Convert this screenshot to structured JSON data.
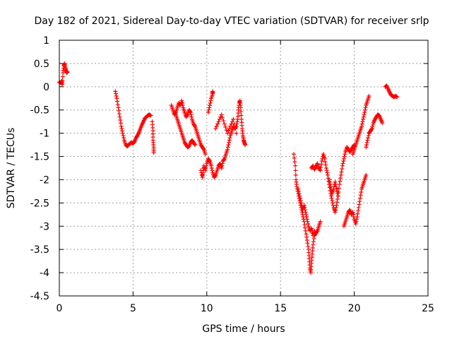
{
  "chart_data": {
    "type": "scatter",
    "title": "Day 182 of 2021, Sidereal Day-to-day VTEC variation (SDTVAR) for receiver srlp",
    "xlabel": "GPS time / hours",
    "ylabel": "SDTVAR / TECUs",
    "xlim": [
      0,
      25
    ],
    "ylim": [
      -4.5,
      1
    ],
    "xticks": [
      "0",
      "5",
      "10",
      "15",
      "20",
      "25"
    ],
    "yticks": [
      "1",
      "0.5",
      "0",
      "-0.5",
      "-1",
      "-1.5",
      "-2",
      "-2.5",
      "-3",
      "-3.5",
      "-4",
      "-4.5"
    ],
    "grid": true,
    "marker": "plus",
    "color": "#ff0000",
    "segments": [
      [
        [
          0.0,
          0.1
        ],
        [
          0.1,
          0.08
        ],
        [
          0.15,
          0.12
        ],
        [
          0.2,
          0.05
        ],
        [
          0.25,
          0.3
        ],
        [
          0.3,
          0.45
        ],
        [
          0.35,
          0.5
        ],
        [
          0.4,
          0.42
        ],
        [
          0.45,
          0.35
        ],
        [
          0.5,
          0.3
        ],
        [
          0.55,
          0.32
        ]
      ],
      [
        [
          3.8,
          -0.1
        ],
        [
          3.9,
          -0.25
        ],
        [
          4.0,
          -0.45
        ],
        [
          4.1,
          -0.65
        ],
        [
          4.2,
          -0.85
        ],
        [
          4.3,
          -1.0
        ],
        [
          4.4,
          -1.15
        ],
        [
          4.5,
          -1.25
        ],
        [
          4.6,
          -1.28
        ],
        [
          4.7,
          -1.25
        ],
        [
          4.8,
          -1.22
        ],
        [
          4.9,
          -1.2
        ],
        [
          5.0,
          -1.22
        ],
        [
          5.1,
          -1.18
        ],
        [
          5.2,
          -1.1
        ],
        [
          5.3,
          -1.05
        ],
        [
          5.4,
          -0.98
        ],
        [
          5.5,
          -0.9
        ],
        [
          5.6,
          -0.82
        ],
        [
          5.7,
          -0.75
        ],
        [
          5.8,
          -0.68
        ],
        [
          5.9,
          -0.65
        ],
        [
          6.0,
          -0.62
        ],
        [
          6.1,
          -0.6
        ],
        [
          6.2,
          -0.62
        ]
      ],
      [
        [
          6.3,
          -0.75
        ],
        [
          6.35,
          -0.95
        ],
        [
          6.35,
          -1.15
        ],
        [
          6.4,
          -1.3
        ],
        [
          6.4,
          -1.42
        ]
      ],
      [
        [
          7.6,
          -0.4
        ],
        [
          7.7,
          -0.5
        ],
        [
          7.8,
          -0.6
        ],
        [
          7.9,
          -0.55
        ],
        [
          8.0,
          -0.45
        ],
        [
          8.1,
          -0.35
        ],
        [
          8.2,
          -0.4
        ],
        [
          8.3,
          -0.3
        ],
        [
          8.4,
          -0.45
        ],
        [
          8.5,
          -0.55
        ],
        [
          8.6,
          -0.65
        ],
        [
          8.7,
          -0.6
        ],
        [
          8.8,
          -0.5
        ],
        [
          8.9,
          -0.55
        ],
        [
          9.0,
          -0.7
        ],
        [
          9.1,
          -0.8
        ],
        [
          9.2,
          -0.85
        ],
        [
          9.3,
          -0.95
        ],
        [
          9.4,
          -1.05
        ],
        [
          9.5,
          -1.15
        ],
        [
          9.6,
          -1.25
        ],
        [
          9.7,
          -1.3
        ],
        [
          9.8,
          -1.35
        ],
        [
          9.9,
          -1.45
        ]
      ],
      [
        [
          7.9,
          -0.6
        ],
        [
          8.0,
          -0.7
        ],
        [
          8.1,
          -0.8
        ],
        [
          8.2,
          -0.9
        ],
        [
          8.3,
          -1.0
        ],
        [
          8.4,
          -1.1
        ],
        [
          8.5,
          -1.2
        ],
        [
          8.6,
          -1.25
        ],
        [
          8.7,
          -1.3
        ],
        [
          8.8,
          -1.28
        ],
        [
          8.9,
          -1.2
        ],
        [
          9.0,
          -1.15
        ],
        [
          9.1,
          -1.2
        ],
        [
          9.2,
          -1.25
        ]
      ],
      [
        [
          9.6,
          -1.8
        ],
        [
          9.7,
          -1.95
        ],
        [
          9.75,
          -1.85
        ],
        [
          9.8,
          -1.7
        ],
        [
          9.9,
          -1.8
        ],
        [
          10.0,
          -1.65
        ],
        [
          10.1,
          -1.55
        ],
        [
          10.2,
          -1.6
        ],
        [
          10.3,
          -1.7
        ],
        [
          10.4,
          -1.85
        ],
        [
          10.5,
          -1.95
        ],
        [
          10.6,
          -1.9
        ],
        [
          10.7,
          -1.8
        ],
        [
          10.8,
          -1.7
        ],
        [
          10.9,
          -1.65
        ],
        [
          11.0,
          -1.75
        ],
        [
          11.1,
          -1.6
        ],
        [
          11.2,
          -1.55
        ],
        [
          11.3,
          -1.45
        ],
        [
          11.4,
          -1.35
        ],
        [
          11.5,
          -1.2
        ],
        [
          11.6,
          -1.05
        ],
        [
          11.7,
          -0.95
        ],
        [
          11.8,
          -0.85
        ],
        [
          11.9,
          -0.9
        ],
        [
          12.0,
          -0.85
        ],
        [
          12.1,
          -0.7
        ],
        [
          12.15,
          -0.5
        ],
        [
          12.2,
          -0.35
        ],
        [
          12.25,
          -0.3
        ],
        [
          12.3,
          -0.45
        ],
        [
          12.35,
          -0.7
        ],
        [
          12.4,
          -0.9
        ],
        [
          12.45,
          -1.05
        ],
        [
          12.5,
          -1.15
        ],
        [
          12.55,
          -1.2
        ],
        [
          12.6,
          -1.25
        ]
      ],
      [
        [
          10.1,
          -0.55
        ],
        [
          10.2,
          -0.4
        ],
        [
          10.3,
          -0.25
        ],
        [
          10.4,
          -0.15
        ],
        [
          10.4,
          -0.1
        ]
      ],
      [
        [
          10.6,
          -0.9
        ],
        [
          10.8,
          -0.75
        ],
        [
          11.0,
          -0.6
        ],
        [
          11.2,
          -0.8
        ],
        [
          11.4,
          -1.0
        ],
        [
          11.6,
          -0.85
        ],
        [
          11.8,
          -0.7
        ],
        [
          12.0,
          -1.0
        ]
      ],
      [
        [
          15.9,
          -1.45
        ],
        [
          16.0,
          -1.7
        ],
        [
          16.05,
          -2.0
        ],
        [
          16.1,
          -2.15
        ],
        [
          16.2,
          -2.3
        ],
        [
          16.3,
          -2.45
        ],
        [
          16.4,
          -2.6
        ],
        [
          16.5,
          -2.75
        ],
        [
          16.6,
          -2.9
        ],
        [
          16.7,
          -3.1
        ],
        [
          16.8,
          -3.3
        ],
        [
          16.9,
          -3.5
        ],
        [
          16.95,
          -3.7
        ],
        [
          17.0,
          -3.9
        ],
        [
          17.05,
          -4.0
        ],
        [
          17.1,
          -3.8
        ],
        [
          17.15,
          -3.6
        ],
        [
          17.2,
          -3.4
        ],
        [
          17.3,
          -3.2
        ],
        [
          17.4,
          -3.15
        ],
        [
          17.5,
          -3.1
        ],
        [
          17.6,
          -3.0
        ],
        [
          17.7,
          -2.9
        ]
      ],
      [
        [
          16.2,
          -2.2
        ],
        [
          16.3,
          -2.35
        ],
        [
          16.4,
          -2.5
        ],
        [
          16.5,
          -2.65
        ],
        [
          16.6,
          -2.55
        ],
        [
          16.7,
          -2.7
        ],
        [
          16.8,
          -2.85
        ],
        [
          16.9,
          -3.0
        ],
        [
          17.0,
          -3.1
        ],
        [
          17.1,
          -3.05
        ],
        [
          17.2,
          -3.2
        ],
        [
          17.3,
          -3.1
        ]
      ],
      [
        [
          17.1,
          -1.75
        ],
        [
          17.2,
          -1.7
        ],
        [
          17.3,
          -1.78
        ],
        [
          17.4,
          -1.72
        ],
        [
          17.5,
          -1.65
        ],
        [
          17.6,
          -1.75
        ],
        [
          17.7,
          -1.8
        ],
        [
          17.8,
          -1.6
        ],
        [
          17.9,
          -1.45
        ],
        [
          18.0,
          -1.55
        ],
        [
          18.1,
          -1.75
        ],
        [
          18.2,
          -1.9
        ],
        [
          18.3,
          -2.1
        ],
        [
          18.4,
          -2.3
        ],
        [
          18.5,
          -2.45
        ],
        [
          18.6,
          -2.6
        ],
        [
          18.7,
          -2.7
        ],
        [
          18.8,
          -2.55
        ],
        [
          18.9,
          -2.35
        ],
        [
          19.0,
          -2.1
        ],
        [
          19.1,
          -1.9
        ],
        [
          19.2,
          -1.7
        ],
        [
          19.3,
          -1.55
        ],
        [
          19.4,
          -1.4
        ],
        [
          19.5,
          -1.3
        ],
        [
          19.6,
          -1.35
        ],
        [
          19.7,
          -1.4
        ],
        [
          19.8,
          -1.35
        ],
        [
          19.9,
          -1.3
        ],
        [
          20.0,
          -1.25
        ]
      ],
      [
        [
          18.3,
          -2.0
        ],
        [
          18.4,
          -2.15
        ],
        [
          18.5,
          -2.3
        ],
        [
          18.6,
          -2.2
        ],
        [
          18.7,
          -2.05
        ],
        [
          18.8,
          -2.2
        ],
        [
          18.9,
          -2.35
        ]
      ],
      [
        [
          19.3,
          -3.0
        ],
        [
          19.4,
          -2.9
        ],
        [
          19.5,
          -2.8
        ],
        [
          19.6,
          -2.7
        ],
        [
          19.7,
          -2.65
        ],
        [
          19.8,
          -2.75
        ],
        [
          19.9,
          -2.7
        ],
        [
          20.0,
          -2.85
        ],
        [
          20.1,
          -2.95
        ],
        [
          20.2,
          -2.8
        ],
        [
          20.3,
          -2.6
        ],
        [
          20.4,
          -2.4
        ],
        [
          20.5,
          -2.2
        ],
        [
          20.6,
          -2.1
        ],
        [
          20.7,
          -2.0
        ],
        [
          20.8,
          -1.9
        ]
      ],
      [
        [
          19.9,
          -1.45
        ],
        [
          20.0,
          -1.35
        ],
        [
          20.1,
          -1.25
        ],
        [
          20.2,
          -1.15
        ],
        [
          20.3,
          -1.05
        ],
        [
          20.4,
          -0.95
        ],
        [
          20.5,
          -0.85
        ],
        [
          20.6,
          -0.7
        ],
        [
          20.7,
          -0.55
        ],
        [
          20.8,
          -0.4
        ],
        [
          20.9,
          -0.3
        ],
        [
          21.0,
          -0.2
        ]
      ],
      [
        [
          20.8,
          -1.3
        ],
        [
          20.9,
          -1.15
        ],
        [
          21.0,
          -1.0
        ],
        [
          21.1,
          -0.95
        ],
        [
          21.2,
          -0.9
        ],
        [
          21.3,
          -0.78
        ],
        [
          21.4,
          -0.7
        ],
        [
          21.5,
          -0.65
        ],
        [
          21.6,
          -0.6
        ],
        [
          21.7,
          -0.62
        ],
        [
          21.8,
          -0.7
        ],
        [
          21.9,
          -0.78
        ]
      ],
      [
        [
          22.1,
          0.0
        ],
        [
          22.2,
          0.02
        ],
        [
          22.3,
          -0.05
        ],
        [
          22.4,
          -0.12
        ],
        [
          22.5,
          -0.18
        ],
        [
          22.6,
          -0.2
        ],
        [
          22.7,
          -0.22
        ],
        [
          22.8,
          -0.2
        ],
        [
          22.9,
          -0.22
        ]
      ]
    ]
  }
}
